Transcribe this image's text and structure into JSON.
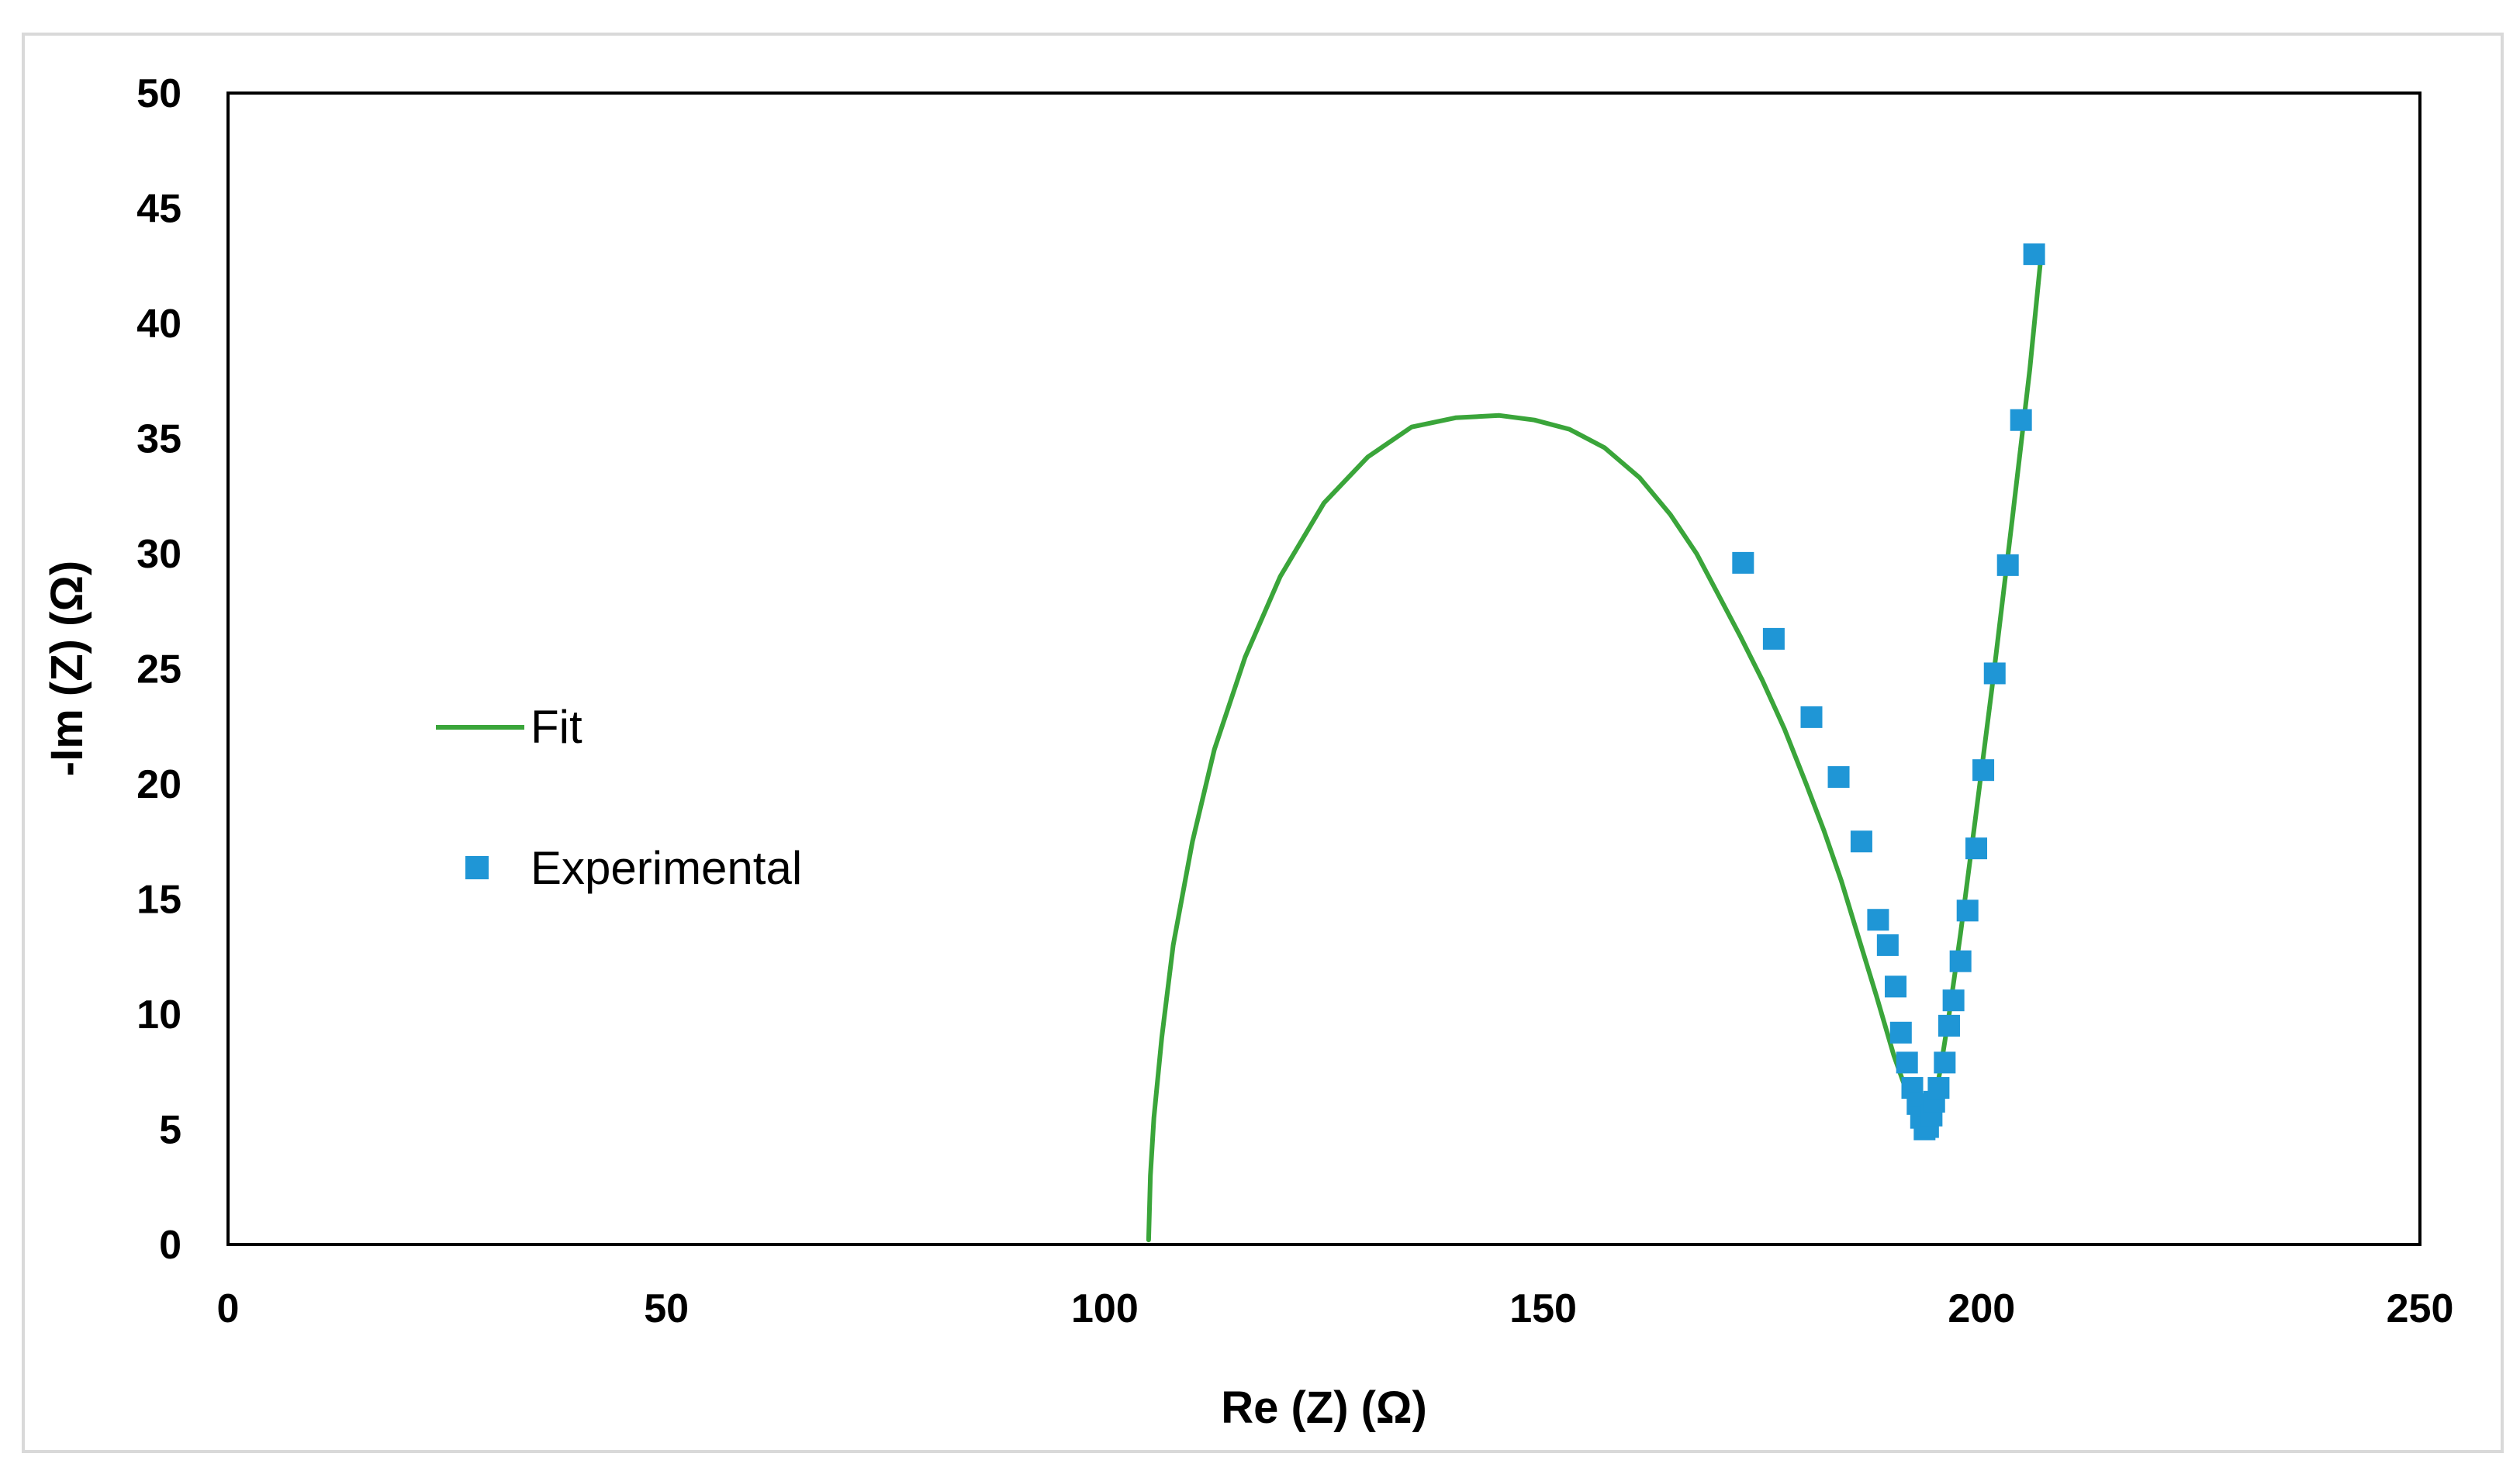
{
  "chart_data": {
    "type": "scatter",
    "title": "",
    "xlabel": "Re (Z) (Ω)",
    "ylabel": "-Im (Z) (Ω)",
    "xlim": [
      0,
      250
    ],
    "ylim": [
      0,
      50
    ],
    "xticks": [
      "0",
      "50",
      "100",
      "150",
      "200",
      "250"
    ],
    "yticks": [
      "0",
      "5",
      "10",
      "15",
      "20",
      "25",
      "30",
      "35",
      "40",
      "45",
      "50"
    ],
    "grid": false,
    "legend_position": "left",
    "series": [
      {
        "name": "Fit",
        "kind": "line",
        "color": "#3aa53a",
        "x": [
          105.0,
          105.2,
          105.6,
          106.5,
          107.8,
          110.0,
          112.5,
          116.0,
          120.0,
          125.0,
          130.0,
          135.0,
          140.0,
          145.0,
          149.0,
          153.0,
          157.0,
          161.0,
          164.5,
          167.5,
          170.0,
          172.5,
          175.0,
          177.5,
          180.0,
          182.0,
          184.0,
          186.0,
          188.0,
          190.0,
          191.5,
          192.5,
          193.2,
          193.8,
          194.5,
          195.3,
          196.3,
          197.6,
          199.3,
          201.3,
          203.5,
          205.5,
          206.8
        ],
        "y": [
          0.2,
          3.0,
          5.5,
          9.0,
          13.0,
          17.5,
          21.5,
          25.5,
          29.0,
          32.2,
          34.2,
          35.5,
          35.9,
          36.0,
          35.8,
          35.4,
          34.6,
          33.3,
          31.7,
          30.0,
          28.2,
          26.4,
          24.5,
          22.4,
          20.0,
          18.0,
          15.8,
          13.3,
          10.8,
          8.2,
          6.6,
          5.6,
          5.1,
          5.2,
          6.0,
          7.6,
          10.0,
          13.5,
          18.5,
          24.5,
          31.5,
          38.0,
          43.0
        ]
      },
      {
        "name": "Experimental",
        "kind": "marker",
        "color": "#1f96d6",
        "x": [
          172.8,
          176.3,
          180.6,
          183.7,
          186.3,
          188.2,
          189.3,
          190.2,
          190.8,
          191.5,
          192.1,
          192.7,
          193.1,
          193.5,
          193.9,
          194.3,
          194.6,
          195.1,
          195.8,
          196.3,
          196.8,
          197.6,
          198.4,
          199.4,
          200.2,
          201.5,
          203.0,
          204.5,
          206.0
        ],
        "y": [
          29.6,
          26.3,
          22.9,
          20.3,
          17.5,
          14.1,
          13.0,
          11.2,
          9.2,
          7.9,
          6.8,
          6.1,
          5.5,
          5.0,
          5.1,
          5.6,
          6.2,
          6.8,
          7.9,
          9.5,
          10.6,
          12.3,
          14.5,
          17.2,
          20.6,
          24.8,
          29.5,
          35.8,
          43.0
        ]
      }
    ]
  }
}
